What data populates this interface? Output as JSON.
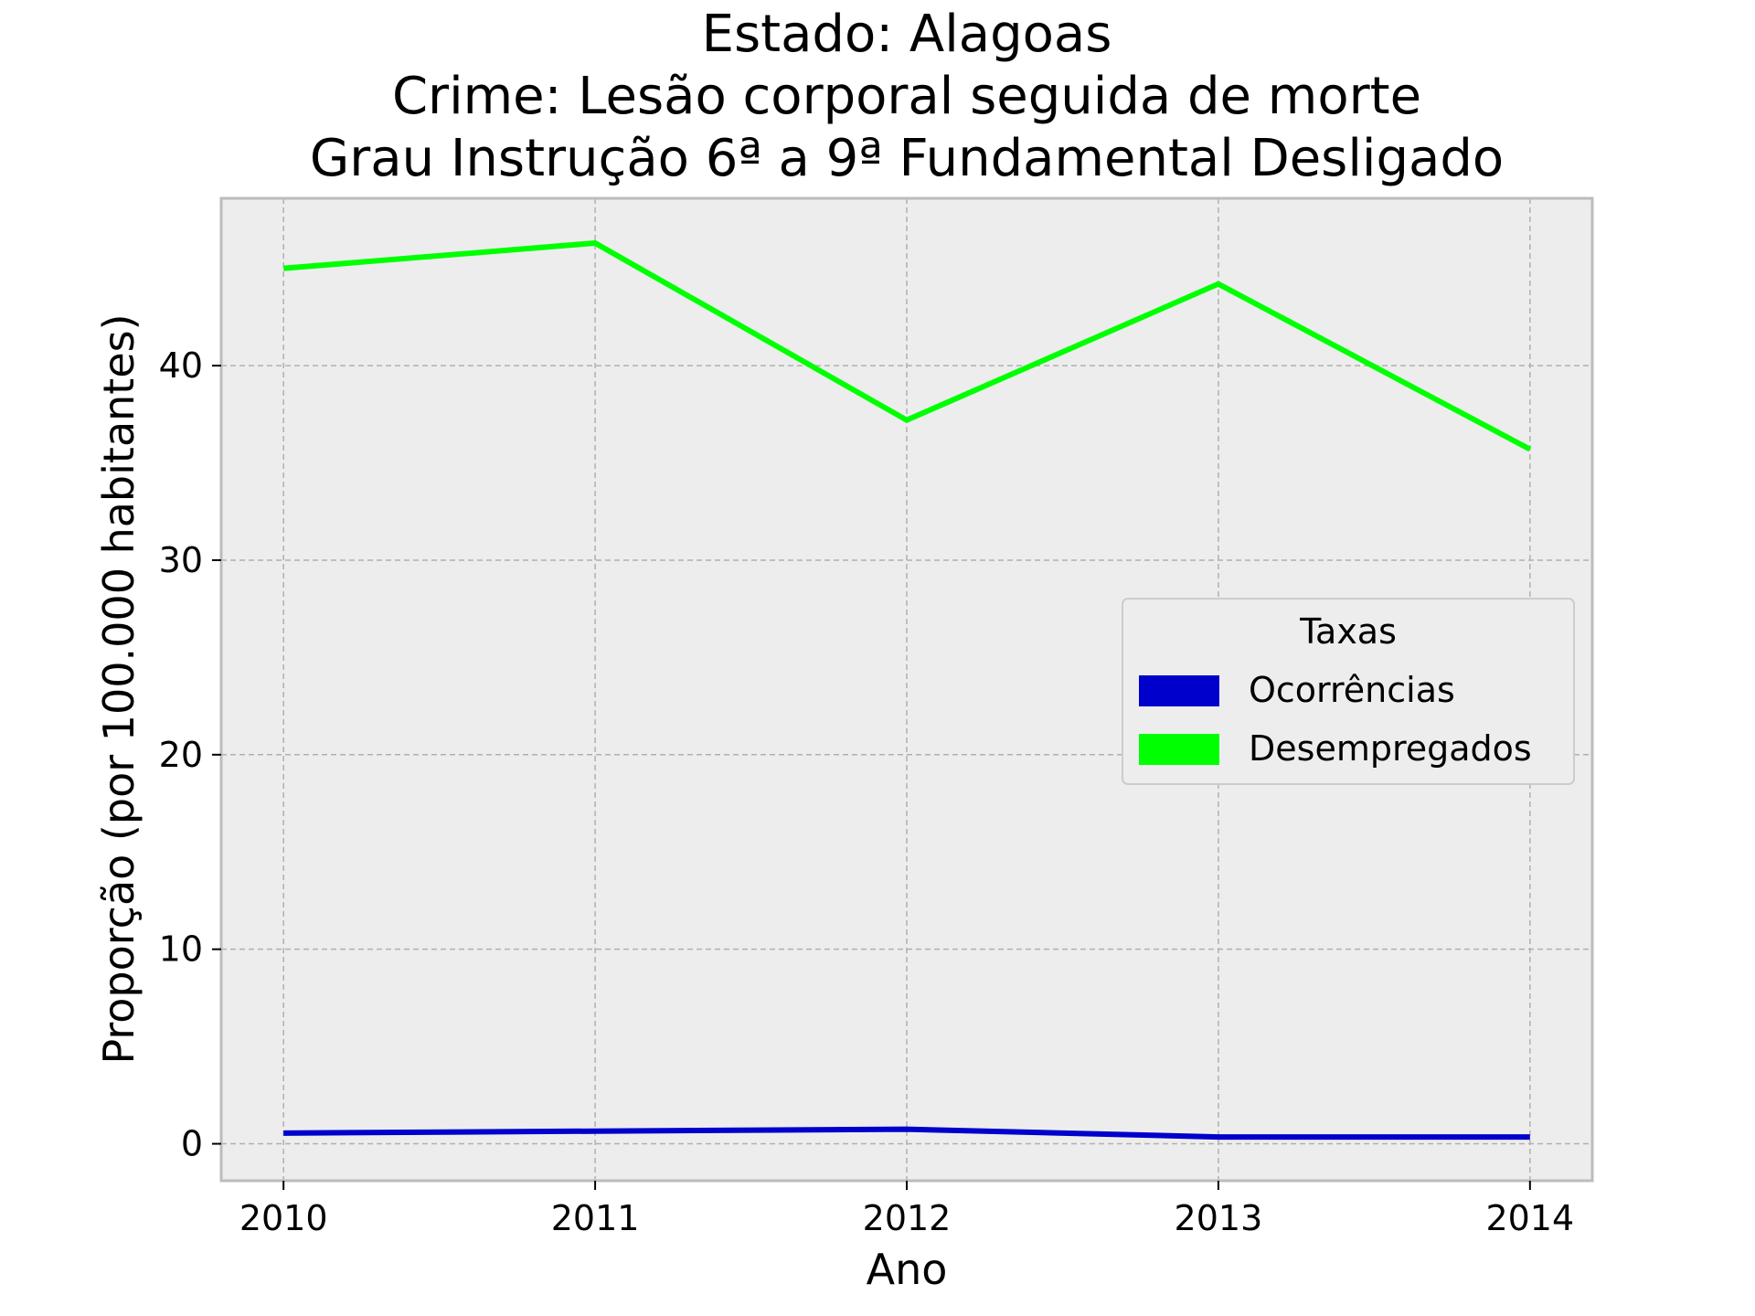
{
  "chart_data": {
    "type": "line",
    "title_lines": [
      "Estado: Alagoas",
      "Crime: Lesão corporal seguida de morte",
      "Grau Instrução  6ª a 9ª Fundamental   Desligado"
    ],
    "xlabel": "Ano",
    "ylabel": "Proporção (por 100.000 habitantes)",
    "x": [
      2010,
      2011,
      2012,
      2013,
      2014
    ],
    "x_tick_labels": [
      "2010",
      "2011",
      "2012",
      "2013",
      "2014"
    ],
    "y_ticks": [
      0,
      10,
      20,
      30,
      40
    ],
    "y_tick_labels": [
      "0",
      "10",
      "20",
      "30",
      "40"
    ],
    "xlim": [
      2009.8,
      2014.2
    ],
    "ylim": [
      -1.9,
      48.6
    ],
    "grid": true,
    "series": [
      {
        "name": "Ocorrências",
        "color": "#0000cc",
        "values": [
          0.55,
          0.65,
          0.75,
          0.35,
          0.35
        ]
      },
      {
        "name": "Desempregados",
        "color": "#00ff00",
        "values": [
          45.0,
          46.3,
          37.2,
          44.2,
          35.7
        ]
      }
    ],
    "legend": {
      "title": "Taxas",
      "placement": "center-right"
    },
    "colors": {
      "plot_background": "#ededed",
      "grid": "#b0b0b0",
      "frame": "#bcbcbc"
    }
  }
}
